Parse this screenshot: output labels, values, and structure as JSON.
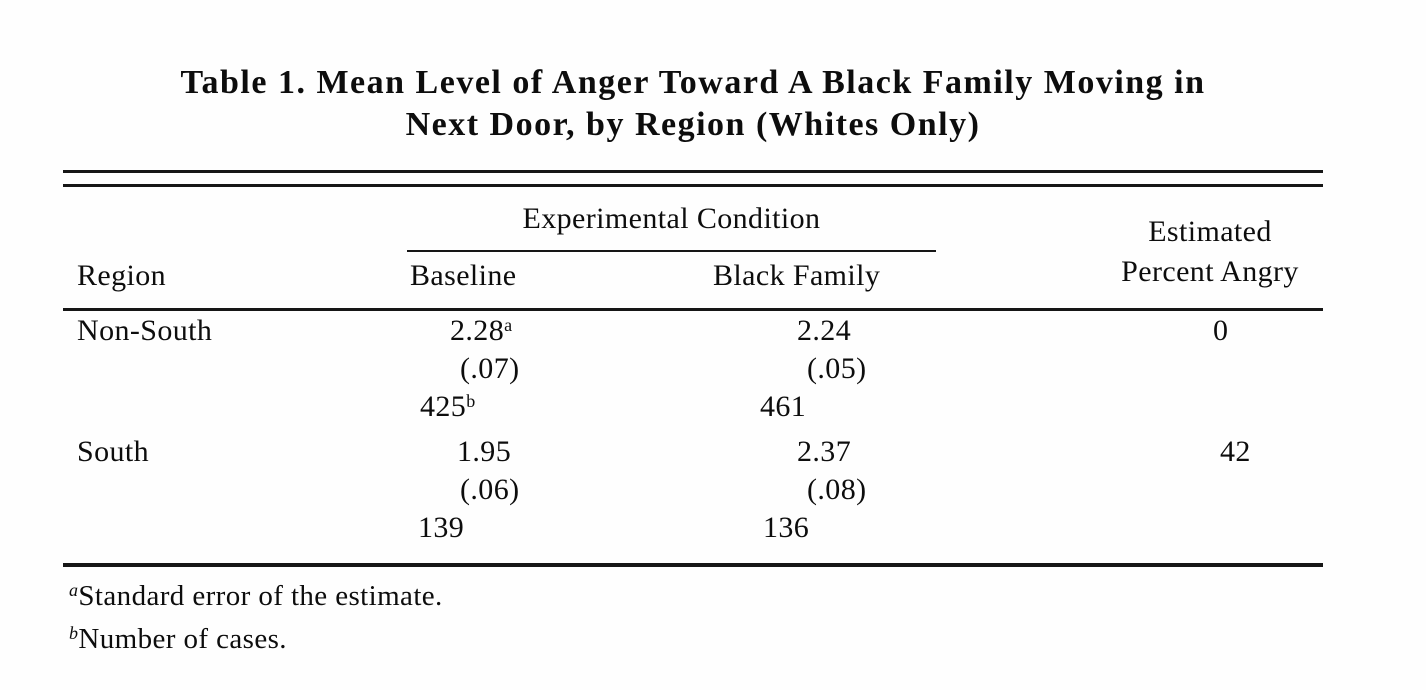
{
  "title": {
    "line1": "Table 1. Mean Level of Anger Toward A Black Family Moving in",
    "line2": "Next Door, by Region (Whites Only)"
  },
  "table": {
    "spanner_header": "Experimental Condition",
    "col_headers": {
      "region": "Region",
      "baseline": "Baseline",
      "black_family": "Black Family",
      "estimated_line1": "Estimated",
      "estimated_line2": "Percent Angry"
    },
    "rows": [
      {
        "region": "Non-South",
        "baseline": {
          "mean": "2.28",
          "mean_sup": "a",
          "se": "(.07)",
          "n": "425",
          "n_sup": "b"
        },
        "black_family": {
          "mean": "2.24",
          "se": "(.05)",
          "n": "461"
        },
        "percent_angry": "0"
      },
      {
        "region": "South",
        "baseline": {
          "mean": "1.95",
          "se": "(.06)",
          "n": "139"
        },
        "black_family": {
          "mean": "2.37",
          "se": "(.08)",
          "n": "136"
        },
        "percent_angry": "42"
      }
    ]
  },
  "footnotes": [
    {
      "marker": "a",
      "text": "Standard error of the estimate."
    },
    {
      "marker": "b",
      "text": "Number of cases."
    }
  ],
  "colors": {
    "background": "#fefefe",
    "text": "#0d0d0d",
    "rule": "#161616"
  }
}
